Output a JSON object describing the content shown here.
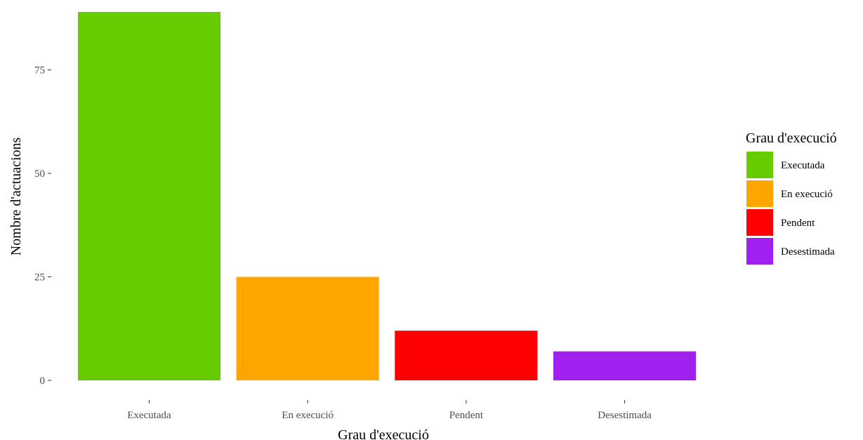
{
  "chart_data": {
    "type": "bar",
    "categories": [
      "Executada",
      "En execució",
      "Pendent",
      "Desestimada"
    ],
    "values": [
      89,
      25,
      12,
      7
    ],
    "colors": [
      "#66cc00",
      "#ffa500",
      "#ff0000",
      "#a020f0"
    ],
    "xlabel": "Grau d'execució",
    "ylabel": "Nombre d'actuacions",
    "ylim": [
      0,
      89
    ],
    "yticks": [
      0,
      25,
      50,
      75
    ],
    "grid": false,
    "legend": {
      "title": "Grau d'execució",
      "placement": "right",
      "entries": [
        "Executada",
        "En execució",
        "Pendent",
        "Desestimada"
      ]
    }
  }
}
